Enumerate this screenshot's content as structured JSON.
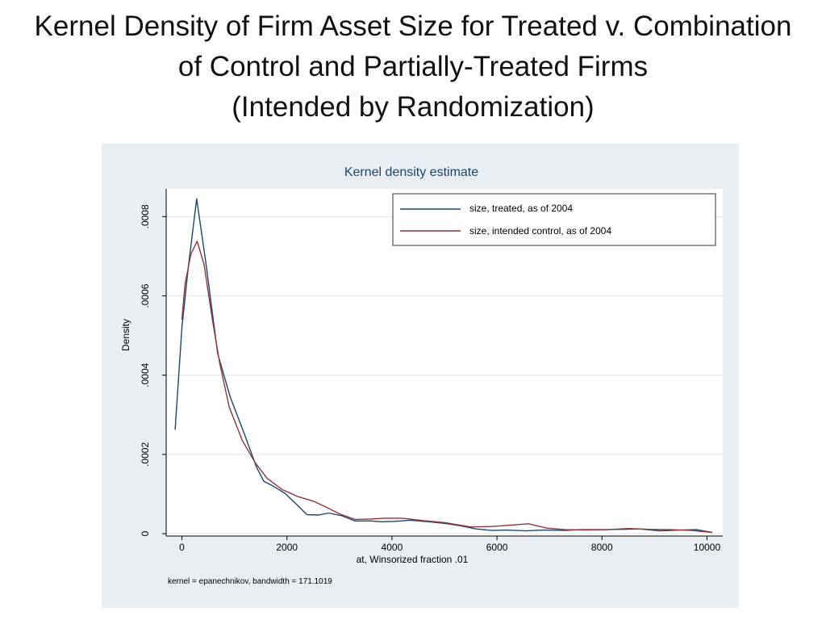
{
  "slide": {
    "title_lines": [
      "Kernel Density of Firm Asset Size for Treated v. Combination",
      "of Control and Partially-Treated Firms",
      "(Intended by Randomization)"
    ]
  },
  "chart_data": {
    "type": "line",
    "title": "Kernel density estimate",
    "xlabel": "at, Winsorized fraction .01",
    "ylabel": "Density",
    "note": "kernel = epanechnikov, bandwidth = 171.1019",
    "xlim": [
      -300,
      10300
    ],
    "ylim": [
      -6e-06,
      0.00087
    ],
    "xticks": [
      0,
      2000,
      4000,
      6000,
      8000,
      10000
    ],
    "xtick_labels": [
      "0",
      "2000",
      "4000",
      "6000",
      "8000",
      "10000"
    ],
    "yticks": [
      0,
      0.0002,
      0.0004,
      0.0006,
      0.0008
    ],
    "ytick_labels": [
      "0",
      ".0002",
      ".0004",
      ".0006",
      ".0008"
    ],
    "grid": true,
    "legend_position": "top-right",
    "colors": {
      "panel_bg": "#e8eef2",
      "plot_bg": "#ffffff",
      "title": "#1a476f",
      "grid": "#e0e6ea"
    },
    "series": [
      {
        "name": "size, treated, as of 2004",
        "color": "#1a476f",
        "points": [
          [
            -130,
            0.000262
          ],
          [
            0,
            0.00052
          ],
          [
            120,
            0.00067
          ],
          [
            280,
            0.000845
          ],
          [
            450,
            0.00069
          ],
          [
            680,
            0.000455
          ],
          [
            920,
            0.000345
          ],
          [
            1180,
            0.000255
          ],
          [
            1420,
            0.000168
          ],
          [
            1560,
            0.000132
          ],
          [
            1700,
            0.000123
          ],
          [
            1960,
            0.000102
          ],
          [
            2200,
            7.2e-05
          ],
          [
            2380,
            4.8e-05
          ],
          [
            2600,
            4.7e-05
          ],
          [
            2800,
            5.2e-05
          ],
          [
            3050,
            4.5e-05
          ],
          [
            3300,
            3.2e-05
          ],
          [
            3600,
            3.2e-05
          ],
          [
            3800,
            3e-05
          ],
          [
            4050,
            3.1e-05
          ],
          [
            4350,
            3.4e-05
          ],
          [
            4700,
            3e-05
          ],
          [
            5000,
            2.6e-05
          ],
          [
            5300,
            2e-05
          ],
          [
            5600,
            1.2e-05
          ],
          [
            5900,
            8e-06
          ],
          [
            6200,
            9e-06
          ],
          [
            6550,
            7e-06
          ],
          [
            6900,
            9e-06
          ],
          [
            7300,
            8e-06
          ],
          [
            7600,
            1e-05
          ],
          [
            8000,
            1e-05
          ],
          [
            8400,
            1.1e-05
          ],
          [
            8700,
            1.2e-05
          ],
          [
            9100,
            7e-06
          ],
          [
            9500,
            9e-06
          ],
          [
            9800,
            1e-05
          ],
          [
            10100,
            3e-06
          ]
        ]
      },
      {
        "name": "size, intended control, as of 2004",
        "color": "#90353b",
        "points": [
          [
            0,
            0.00054
          ],
          [
            60,
            0.00063
          ],
          [
            170,
            0.000705
          ],
          [
            290,
            0.000738
          ],
          [
            420,
            0.00068
          ],
          [
            580,
            0.00054
          ],
          [
            720,
            0.00043
          ],
          [
            900,
            0.00032
          ],
          [
            1150,
            0.000235
          ],
          [
            1400,
            0.000178
          ],
          [
            1620,
            0.00014
          ],
          [
            1900,
            0.000112
          ],
          [
            2200,
            9.4e-05
          ],
          [
            2500,
            8.2e-05
          ],
          [
            2700,
            7e-05
          ],
          [
            3000,
            5e-05
          ],
          [
            3300,
            3.6e-05
          ],
          [
            3600,
            3.7e-05
          ],
          [
            3850,
            3.9e-05
          ],
          [
            4200,
            3.9e-05
          ],
          [
            4600,
            3.3e-05
          ],
          [
            5000,
            2.8e-05
          ],
          [
            5500,
            1.7e-05
          ],
          [
            5900,
            1.8e-05
          ],
          [
            6300,
            2.2e-05
          ],
          [
            6600,
            2.5e-05
          ],
          [
            6950,
            1.4e-05
          ],
          [
            7300,
            1e-05
          ],
          [
            7700,
            9e-06
          ],
          [
            8100,
            1e-05
          ],
          [
            8500,
            1.3e-05
          ],
          [
            8900,
            1.1e-05
          ],
          [
            9300,
            1e-05
          ],
          [
            9700,
            8e-06
          ],
          [
            10100,
            3e-06
          ]
        ]
      }
    ]
  }
}
